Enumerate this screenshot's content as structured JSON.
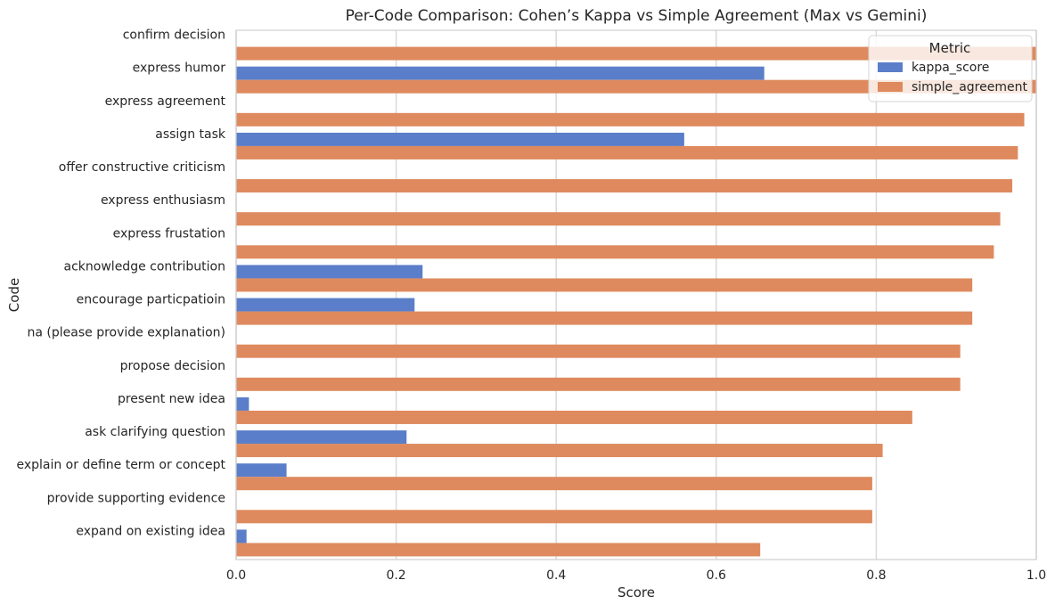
{
  "chart_data": {
    "type": "bar",
    "orientation": "horizontal",
    "title": "Per-Code Comparison: Cohen’s Kappa vs Simple Agreement (Max vs Gemini)",
    "xlabel": "Score",
    "ylabel": "Code",
    "xlim": [
      0,
      1.0
    ],
    "x_ticks": [
      "0.0",
      "0.2",
      "0.4",
      "0.6",
      "0.8",
      "1.0"
    ],
    "grid": "vertical",
    "categories": [
      "confirm decision",
      "express humor",
      "express agreement",
      "assign task",
      "offer constructive criticism",
      "express enthusiasm",
      "express frustation",
      "acknowledge contribution",
      "encourage particpatioin",
      "na (please provide explanation)",
      "propose decision",
      "present new idea",
      "ask clarifying question",
      "explain or define term or concept",
      "provide supporting evidence",
      "expand on existing idea"
    ],
    "series": [
      {
        "name": "kappa_score",
        "color": "#5a7ec9",
        "values": [
          0.0,
          0.66,
          0.0,
          0.56,
          0.0,
          0.0,
          0.0,
          0.233,
          0.223,
          0.0,
          0.0,
          0.016,
          0.213,
          0.063,
          0.0,
          0.013
        ]
      },
      {
        "name": "simple_agreement",
        "color": "#de8a5e",
        "values": [
          1.0,
          1.0,
          0.985,
          0.977,
          0.97,
          0.955,
          0.947,
          0.92,
          0.92,
          0.905,
          0.905,
          0.845,
          0.808,
          0.795,
          0.795,
          0.655
        ]
      }
    ],
    "legend": {
      "title": "Metric",
      "position": "top-right"
    }
  }
}
